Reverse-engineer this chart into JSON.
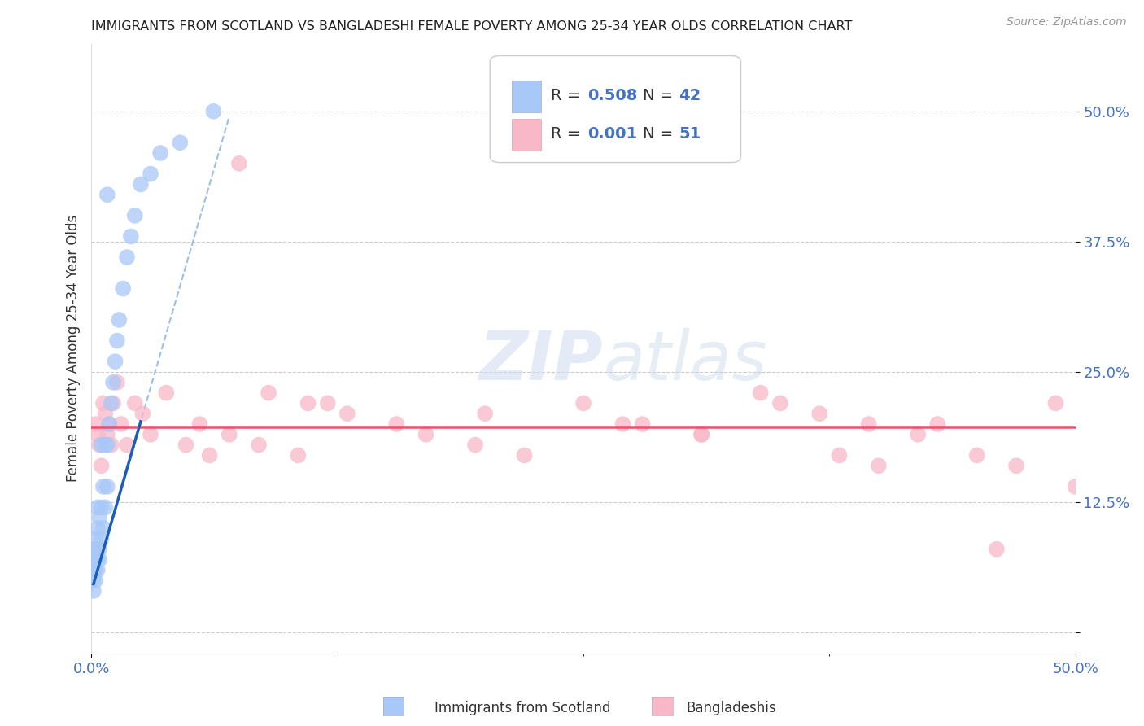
{
  "title": "IMMIGRANTS FROM SCOTLAND VS BANGLADESHI FEMALE POVERTY AMONG 25-34 YEAR OLDS CORRELATION CHART",
  "source": "Source: ZipAtlas.com",
  "ylabel": "Female Poverty Among 25-34 Year Olds",
  "xlim": [
    0.0,
    0.5
  ],
  "ylim": [
    -0.02,
    0.565
  ],
  "ytick_vals": [
    0.0,
    0.125,
    0.25,
    0.375,
    0.5
  ],
  "ytick_labels": [
    "",
    "12.5%",
    "25.0%",
    "37.5%",
    "50.0%"
  ],
  "watermark": "ZIPatlas",
  "scotland_color": "#a8c8f8",
  "bangladeshi_color": "#f8b8c8",
  "trendline_scotland_solid_color": "#1a5eb8",
  "trendline_scotland_dash_color": "#90b8e8",
  "trendline_bangladeshi_color": "#e8526a",
  "background_color": "#ffffff",
  "grid_color": "#cccccc",
  "scotland_x": [
    0.001,
    0.001,
    0.001,
    0.001,
    0.001,
    0.002,
    0.002,
    0.002,
    0.002,
    0.002,
    0.003,
    0.003,
    0.003,
    0.003,
    0.004,
    0.004,
    0.004,
    0.005,
    0.005,
    0.005,
    0.006,
    0.006,
    0.007,
    0.007,
    0.008,
    0.008,
    0.008,
    0.009,
    0.01,
    0.011,
    0.012,
    0.013,
    0.014,
    0.016,
    0.018,
    0.02,
    0.022,
    0.025,
    0.03,
    0.035,
    0.045,
    0.062
  ],
  "scotland_y": [
    0.04,
    0.05,
    0.06,
    0.07,
    0.08,
    0.05,
    0.06,
    0.07,
    0.08,
    0.09,
    0.06,
    0.07,
    0.1,
    0.12,
    0.07,
    0.08,
    0.11,
    0.09,
    0.12,
    0.18,
    0.1,
    0.14,
    0.12,
    0.18,
    0.14,
    0.18,
    0.42,
    0.2,
    0.22,
    0.24,
    0.26,
    0.28,
    0.3,
    0.33,
    0.36,
    0.38,
    0.4,
    0.43,
    0.44,
    0.46,
    0.47,
    0.5
  ],
  "bangladeshi_x": [
    0.002,
    0.003,
    0.004,
    0.005,
    0.006,
    0.007,
    0.008,
    0.009,
    0.01,
    0.011,
    0.013,
    0.015,
    0.018,
    0.022,
    0.026,
    0.03,
    0.038,
    0.048,
    0.06,
    0.075,
    0.09,
    0.11,
    0.13,
    0.155,
    0.17,
    0.195,
    0.22,
    0.25,
    0.28,
    0.31,
    0.34,
    0.37,
    0.395,
    0.42,
    0.45,
    0.47,
    0.49,
    0.5,
    0.055,
    0.07,
    0.085,
    0.105,
    0.12,
    0.2,
    0.27,
    0.31,
    0.35,
    0.38,
    0.4,
    0.43,
    0.46
  ],
  "bangladeshi_y": [
    0.2,
    0.19,
    0.18,
    0.16,
    0.22,
    0.21,
    0.19,
    0.2,
    0.18,
    0.22,
    0.24,
    0.2,
    0.18,
    0.22,
    0.21,
    0.19,
    0.23,
    0.18,
    0.17,
    0.45,
    0.23,
    0.22,
    0.21,
    0.2,
    0.19,
    0.18,
    0.17,
    0.22,
    0.2,
    0.19,
    0.23,
    0.21,
    0.2,
    0.19,
    0.17,
    0.16,
    0.22,
    0.14,
    0.2,
    0.19,
    0.18,
    0.17,
    0.22,
    0.21,
    0.2,
    0.19,
    0.22,
    0.17,
    0.16,
    0.2,
    0.08
  ],
  "bang_trendline_y": 0.197
}
